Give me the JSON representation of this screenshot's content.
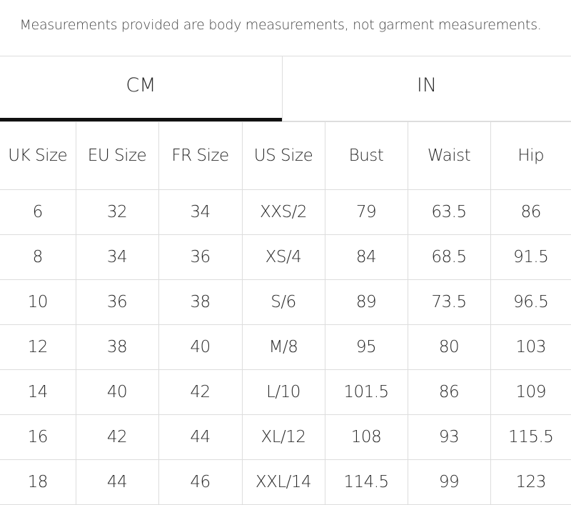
{
  "header": {
    "note": "Measurements provided are body measurements, not garment measurements."
  },
  "tabs": [
    "CM",
    "IN"
  ],
  "table": {
    "columns": [
      "UK Size",
      "EU Size",
      "FR Size",
      "US Size",
      "Bust",
      "Waist",
      "Hip"
    ],
    "rows": [
      [
        "6",
        "32",
        "34",
        "XXS/2",
        "79",
        "63.5",
        "86"
      ],
      [
        "8",
        "34",
        "36",
        "XS/4",
        "84",
        "68.5",
        "91.5"
      ],
      [
        "10",
        "36",
        "38",
        "S/6",
        "89",
        "73.5",
        "96.5"
      ],
      [
        "12",
        "38",
        "40",
        "M/8",
        "95",
        "80",
        "103"
      ],
      [
        "14",
        "40",
        "42",
        "L/10",
        "101.5",
        "86",
        "109"
      ],
      [
        "16",
        "42",
        "44",
        "XL/12",
        "108",
        "93",
        "115.5"
      ],
      [
        "18",
        "44",
        "46",
        "XXL/14",
        "114.5",
        "99",
        "123"
      ]
    ]
  }
}
